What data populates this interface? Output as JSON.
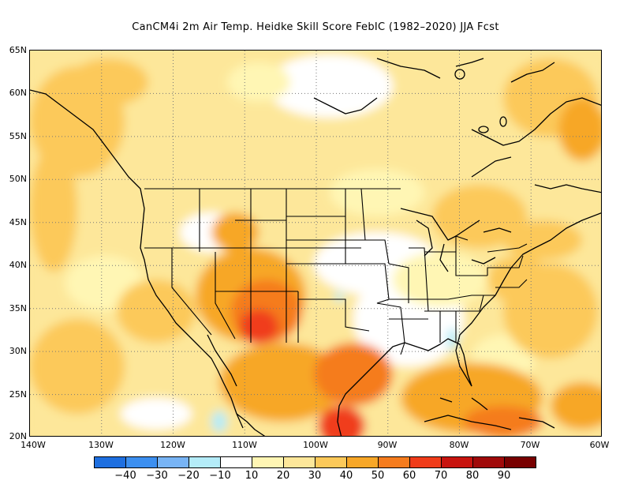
{
  "title": "CanCM4i  2m Air Temp. Heidke Skill Score FebIC (1982–2020) JJA Fcst",
  "chart_data": {
    "type": "heatmap",
    "variable": "2m Air Temp. Heidke Skill Score",
    "lon_range": [
      -140,
      -60
    ],
    "lat_range": [
      20,
      65
    ],
    "lat_ticks": [
      "20N",
      "25N",
      "30N",
      "35N",
      "40N",
      "45N",
      "50N",
      "55N",
      "60N",
      "65N"
    ],
    "lon_ticks": [
      "140W",
      "130W",
      "120W",
      "110W",
      "100W",
      "90W",
      "80W",
      "70W",
      "60W"
    ],
    "grid": true
  },
  "colorbar": {
    "labels": [
      "−40",
      "−30",
      "−20",
      "−10",
      "10",
      "20",
      "30",
      "40",
      "50",
      "60",
      "70",
      "80",
      "90"
    ],
    "colors": [
      "#1e6fe0",
      "#3c8ff0",
      "#78b4f5",
      "#b4ecf8",
      "#ffffff",
      "#fff6b4",
      "#fde79a",
      "#fcc95a",
      "#f7a728",
      "#f57c1e",
      "#f03c1a",
      "#c8140f",
      "#a00a0a",
      "#780000"
    ]
  }
}
